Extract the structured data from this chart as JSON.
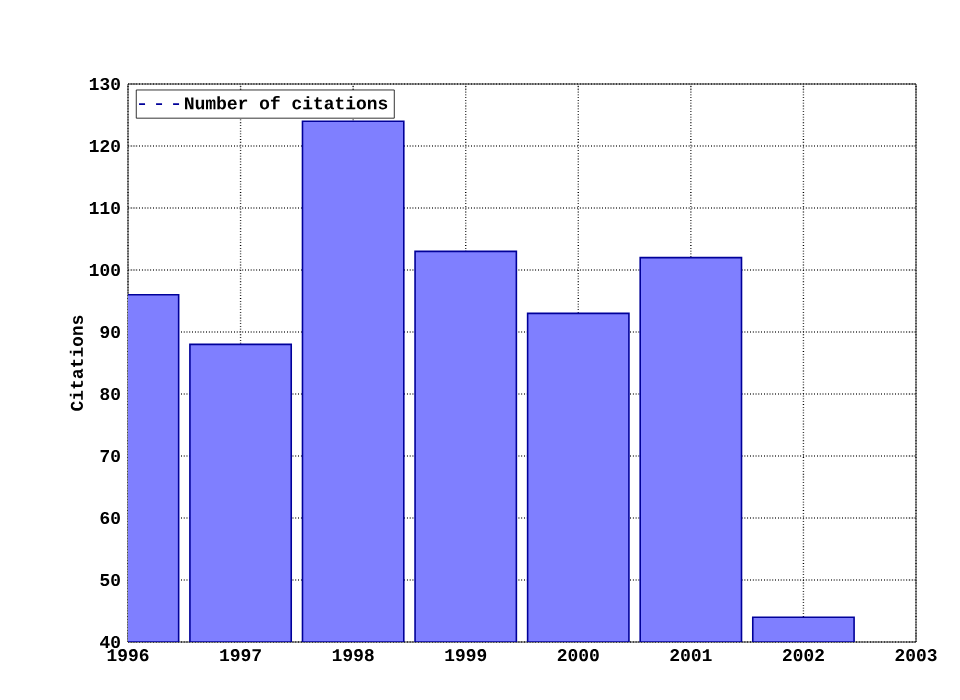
{
  "chart_data": {
    "type": "bar",
    "ylabel": "Citations",
    "x": [
      1996,
      1997,
      1998,
      1999,
      2000,
      2001,
      2002
    ],
    "series": [
      {
        "name": "Number of citations",
        "color": "#7f7fff",
        "values": [
          96,
          88,
          124,
          103,
          93,
          102,
          44
        ]
      }
    ],
    "xlim": [
      1996,
      2003
    ],
    "xticks": [
      1996,
      1997,
      1998,
      1999,
      2000,
      2001,
      2002,
      2003
    ],
    "ylim": [
      40,
      130
    ],
    "yticks": [
      40,
      50,
      60,
      70,
      80,
      90,
      100,
      110,
      120,
      130
    ],
    "grid": true,
    "legend": "top left"
  }
}
